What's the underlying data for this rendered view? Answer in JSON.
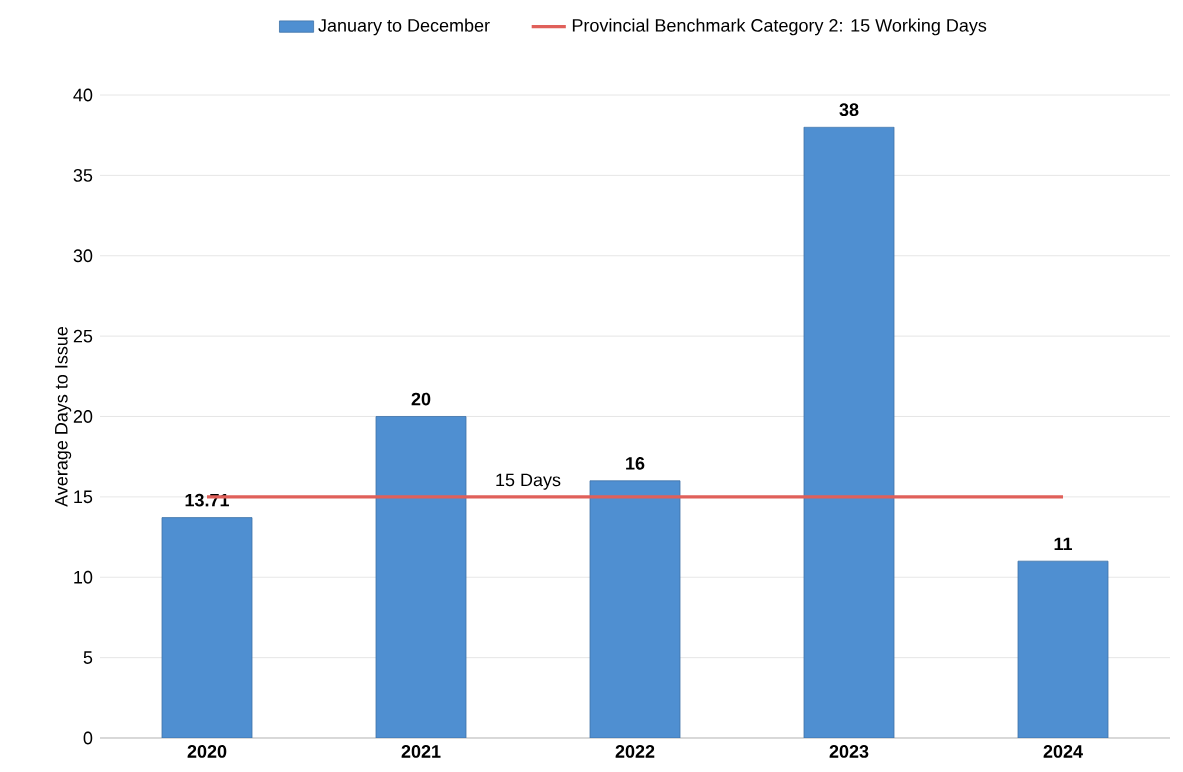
{
  "chart_data": {
    "type": "bar",
    "ylabel": "Average Days to Issue",
    "categories": [
      "2020",
      "2021",
      "2022",
      "2023",
      "2024"
    ],
    "series": [
      {
        "name": "January to December",
        "color": "#4f8fd1",
        "values": [
          13.71,
          20,
          16,
          38,
          11
        ],
        "value_labels": [
          "13.71",
          "20",
          "16",
          "38",
          "11"
        ]
      },
      {
        "name": "Provincial Benchmark Category 2:  15 Working Days",
        "type": "line",
        "color": "#e0605a",
        "values": [
          15,
          15,
          15,
          15,
          15
        ]
      }
    ],
    "annotations": [
      {
        "text": "15 Days",
        "y": 15
      }
    ],
    "ylim": [
      0,
      40
    ],
    "yticks": [
      0,
      5,
      10,
      15,
      20,
      25,
      30,
      35,
      40
    ],
    "grid": "y",
    "legend": "top"
  }
}
